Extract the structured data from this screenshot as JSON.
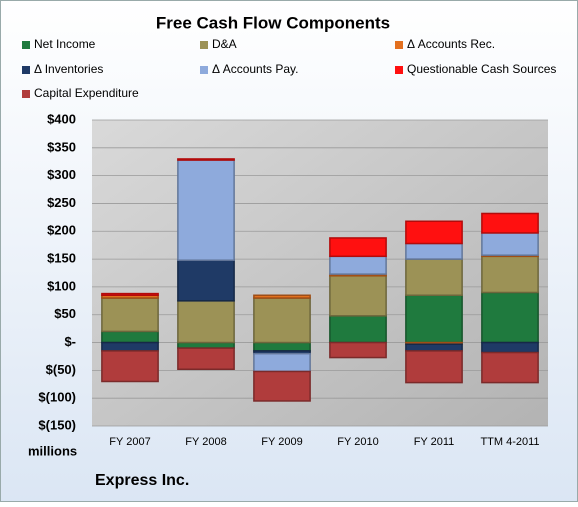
{
  "chart_data": {
    "type": "bar",
    "stacked": true,
    "title": "Free Cash Flow Components",
    "y_unit_label": "millions",
    "footer": "Express Inc.",
    "categories": [
      "FY 2007",
      "FY 2008",
      "FY 2009",
      "FY 2010",
      "FY 2011",
      "TTM 4-2011"
    ],
    "series": [
      {
        "name": "Net Income",
        "color": "#1f7a3e",
        "values": [
          20,
          -10,
          -15,
          48,
          85,
          90
        ]
      },
      {
        "name": "D&A",
        "color": "#9c9256",
        "values": [
          60,
          75,
          80,
          72,
          65,
          65
        ]
      },
      {
        "name": "Δ Accounts Rec.",
        "color": "#e3701f",
        "values": [
          5,
          0,
          5,
          3,
          -3,
          2
        ]
      },
      {
        "name": "Δ Inventories",
        "color": "#1f3a66",
        "values": [
          -15,
          73,
          -5,
          0,
          -12,
          -18
        ]
      },
      {
        "name": "Δ Accounts Pay.",
        "color": "#8eaadc",
        "values": [
          0,
          180,
          -32,
          32,
          28,
          40
        ]
      },
      {
        "name": "Questionable Cash Sources",
        "color": "#ff1010",
        "values": [
          3,
          2,
          0,
          33,
          40,
          35
        ]
      },
      {
        "name": "Capital Expenditure",
        "color": "#b03c3c",
        "values": [
          -55,
          -38,
          -53,
          -27,
          -57,
          -54
        ]
      }
    ],
    "ylim": [
      -150,
      400
    ],
    "yticks": [
      {
        "value": -150,
        "label": "$(150)"
      },
      {
        "value": -100,
        "label": "$(100)"
      },
      {
        "value": -50,
        "label": "$(50)"
      },
      {
        "value": 0,
        "label": "$-"
      },
      {
        "value": 50,
        "label": "$50"
      },
      {
        "value": 100,
        "label": "$100"
      },
      {
        "value": 150,
        "label": "$150"
      },
      {
        "value": 200,
        "label": "$200"
      },
      {
        "value": 250,
        "label": "$250"
      },
      {
        "value": 300,
        "label": "$300"
      },
      {
        "value": 350,
        "label": "$350"
      },
      {
        "value": 400,
        "label": "$400"
      }
    ],
    "grid": true
  }
}
